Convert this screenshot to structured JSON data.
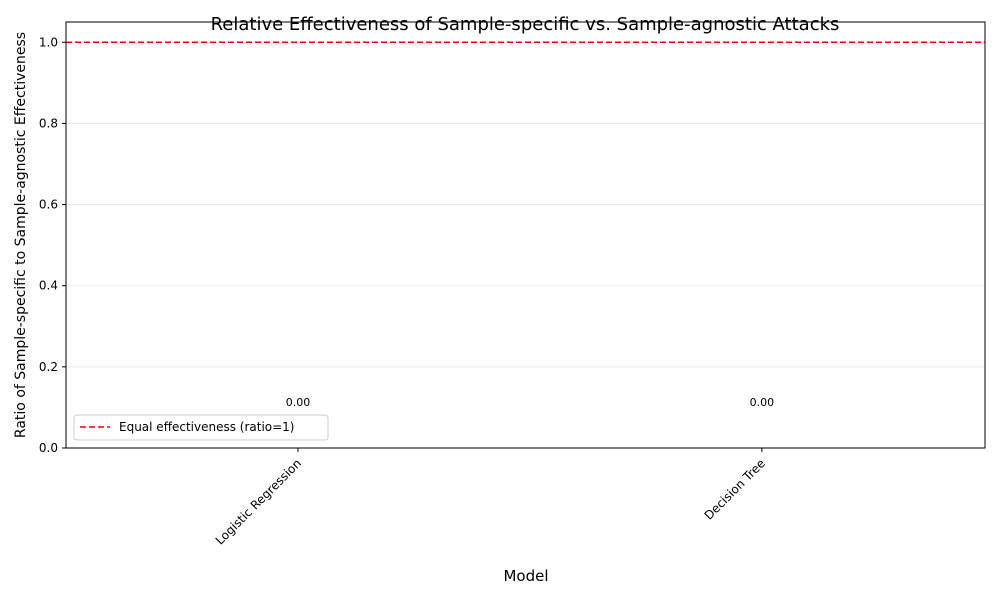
{
  "chart_data": {
    "type": "bar",
    "title": "Relative Effectiveness of Sample-specific vs. Sample-agnostic Attacks",
    "xlabel": "Model",
    "ylabel": "Ratio of Sample-specific to Sample-agnostic Effectiveness",
    "categories": [
      "Logistic Regression",
      "Decision Tree"
    ],
    "values": [
      0.0,
      0.0
    ],
    "value_labels": [
      "0.00",
      "0.00"
    ],
    "ylim": [
      0,
      1.05
    ],
    "yticks": [
      0.0,
      0.2,
      0.4,
      0.6,
      0.8,
      1.0
    ],
    "ytick_labels": [
      "0.0",
      "0.2",
      "0.4",
      "0.6",
      "0.8",
      "1.0"
    ],
    "grid": "y",
    "reference_line": {
      "value": 1.0,
      "color": "#ff0000",
      "style": "dashed",
      "label": "Equal effectiveness (ratio=1)"
    },
    "legend_position": "lower-left",
    "bar_color": "#1f77b4"
  }
}
